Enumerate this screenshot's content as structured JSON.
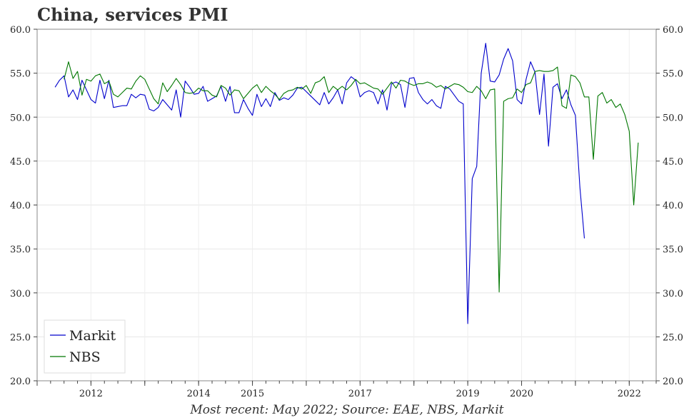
{
  "chart_data": {
    "type": "line",
    "title": "China, services PMI",
    "footer": "Most recent: May 2022; Source: EAE, NBS, Markit",
    "ylim": [
      20,
      60
    ],
    "yticks": [
      "20.0",
      "25.0",
      "30.0",
      "35.0",
      "40.0",
      "45.0",
      "50.0",
      "55.0",
      "60.0"
    ],
    "xlim": [
      "2011-01",
      "2022-07"
    ],
    "xticks": [
      "2012",
      "2014",
      "2015",
      "2017",
      "2019",
      "2020",
      "2022"
    ],
    "grid": true,
    "legend": "bottom-left",
    "series": [
      {
        "name": "Markit",
        "color": "#0000cc",
        "start": "2011-05",
        "values": [
          53.4,
          54.2,
          54.7,
          52.3,
          53.1,
          52.0,
          54.2,
          53.1,
          52.0,
          51.6,
          54.2,
          52.1,
          54.2,
          51.1,
          51.2,
          51.3,
          51.3,
          52.6,
          52.2,
          52.6,
          52.5,
          50.9,
          50.7,
          51.1,
          52.0,
          51.4,
          50.8,
          53.1,
          50.0,
          54.1,
          53.4,
          52.6,
          52.7,
          53.5,
          51.8,
          52.1,
          52.4,
          53.5,
          51.8,
          53.5,
          50.5,
          50.5,
          52.0,
          51.0,
          50.2,
          52.6,
          51.2,
          52.1,
          51.2,
          52.8,
          51.9,
          52.2,
          52.0,
          52.5,
          53.3,
          53.4,
          52.9,
          52.4,
          51.9,
          51.4,
          52.8,
          51.5,
          52.2,
          53.1,
          51.5,
          53.9,
          54.6,
          54.2,
          52.3,
          52.8,
          53.0,
          52.8,
          51.5,
          53.1,
          50.8,
          53.8,
          54.0,
          53.7,
          51.1,
          54.4,
          54.5,
          52.8,
          52.0,
          51.5,
          52.0,
          51.3,
          51.0,
          53.5,
          53.2,
          52.5,
          51.8,
          51.5,
          26.5,
          43.0,
          44.4,
          55.0,
          58.4,
          54.1,
          54.0,
          54.8,
          56.6,
          57.8,
          56.4,
          52.0,
          51.5,
          54.3,
          56.3,
          55.1,
          50.3,
          54.9,
          46.7,
          53.4,
          53.8,
          52.1,
          53.1,
          51.4,
          50.2,
          42.0,
          36.2
        ]
      },
      {
        "name": "NBS",
        "color": "#007700",
        "start": "2011-07",
        "values": [
          54.3,
          56.3,
          54.4,
          55.2,
          52.5,
          54.3,
          54.1,
          54.7,
          54.9,
          53.8,
          54.1,
          52.6,
          52.3,
          52.8,
          53.3,
          53.2,
          54.1,
          54.7,
          54.3,
          53.2,
          52.1,
          51.5,
          53.9,
          52.9,
          53.6,
          54.4,
          53.7,
          52.8,
          52.7,
          52.8,
          53.3,
          53.0,
          53.0,
          52.5,
          52.3,
          53.6,
          53.3,
          52.5,
          53.1,
          53.0,
          52.1,
          52.7,
          53.3,
          53.7,
          52.8,
          53.5,
          53.0,
          52.6,
          52.0,
          52.7,
          53.0,
          53.1,
          53.4,
          53.2,
          53.6,
          52.7,
          53.9,
          54.1,
          54.6,
          52.8,
          53.5,
          53.1,
          53.5,
          53.1,
          53.6,
          54.3,
          53.8,
          53.9,
          53.6,
          53.3,
          53.2,
          52.6,
          53.3,
          54.0,
          53.3,
          54.2,
          54.1,
          53.8,
          53.6,
          53.8,
          53.8,
          54.0,
          53.8,
          53.4,
          53.6,
          53.2,
          53.5,
          53.8,
          53.7,
          53.4,
          52.9,
          52.8,
          53.5,
          53.0,
          52.1,
          53.1,
          53.2,
          30.1,
          51.8,
          52.1,
          52.2,
          53.2,
          52.8,
          53.7,
          53.9,
          55.2,
          55.3,
          55.2,
          55.2,
          55.3,
          55.7,
          51.3,
          51.0,
          54.8,
          54.6,
          53.9,
          52.3,
          52.3,
          45.2,
          52.4,
          52.8,
          51.6,
          52.0,
          51.1,
          51.5,
          50.3,
          48.4,
          40.0,
          47.1
        ]
      }
    ]
  }
}
